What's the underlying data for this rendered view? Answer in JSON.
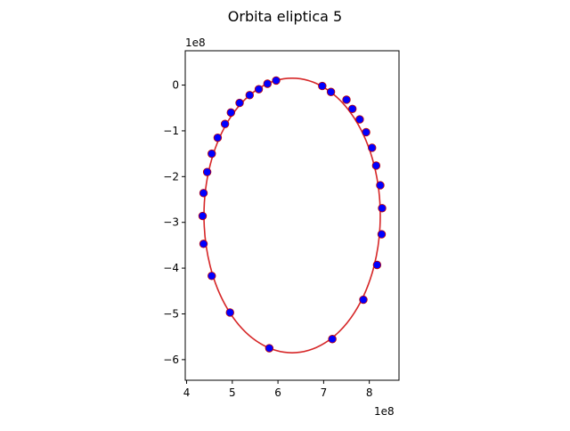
{
  "chart_data": {
    "type": "scatter",
    "title": "Orbita eliptica 5",
    "x_offset_label": "1e8",
    "y_offset_label": "1e8",
    "xlim": [
      3.97,
      8.65
    ],
    "ylim": [
      -6.45,
      0.75
    ],
    "x_ticks": [
      4,
      5,
      6,
      7,
      8
    ],
    "x_tick_labels": [
      "4",
      "5",
      "6",
      "7",
      "8"
    ],
    "y_ticks": [
      0,
      -1,
      -2,
      -3,
      -4,
      -5,
      -6
    ],
    "y_tick_labels": [
      "0",
      "−1",
      "−2",
      "−3",
      "−4",
      "−5",
      "−6"
    ],
    "points_color": "#0000ff",
    "points_edge_color": "#c00000",
    "orbit_color": "#d62728",
    "orbit": {
      "cx": 6.31,
      "cy": -2.85,
      "rx": 1.93,
      "ry": 3.0
    },
    "points": [
      [
        5.96,
        0.1
      ],
      [
        5.77,
        0.03
      ],
      [
        5.58,
        -0.09
      ],
      [
        5.38,
        -0.22
      ],
      [
        5.16,
        -0.39
      ],
      [
        4.97,
        -0.6
      ],
      [
        4.84,
        -0.85
      ],
      [
        4.68,
        -1.15
      ],
      [
        4.55,
        -1.5
      ],
      [
        4.45,
        -1.9
      ],
      [
        4.37,
        -2.36
      ],
      [
        4.35,
        -2.86
      ],
      [
        4.37,
        -3.47
      ],
      [
        4.55,
        -4.17
      ],
      [
        4.95,
        -4.97
      ],
      [
        5.81,
        -5.75
      ],
      [
        7.19,
        -5.55
      ],
      [
        7.87,
        -4.69
      ],
      [
        8.17,
        -3.93
      ],
      [
        8.27,
        -3.26
      ],
      [
        8.28,
        -2.69
      ],
      [
        8.24,
        -2.19
      ],
      [
        8.15,
        -1.76
      ],
      [
        8.06,
        -1.37
      ],
      [
        7.93,
        -1.03
      ],
      [
        7.79,
        -0.75
      ],
      [
        7.63,
        -0.52
      ],
      [
        7.5,
        -0.32
      ],
      [
        7.16,
        -0.15
      ],
      [
        6.97,
        -0.02
      ]
    ]
  }
}
